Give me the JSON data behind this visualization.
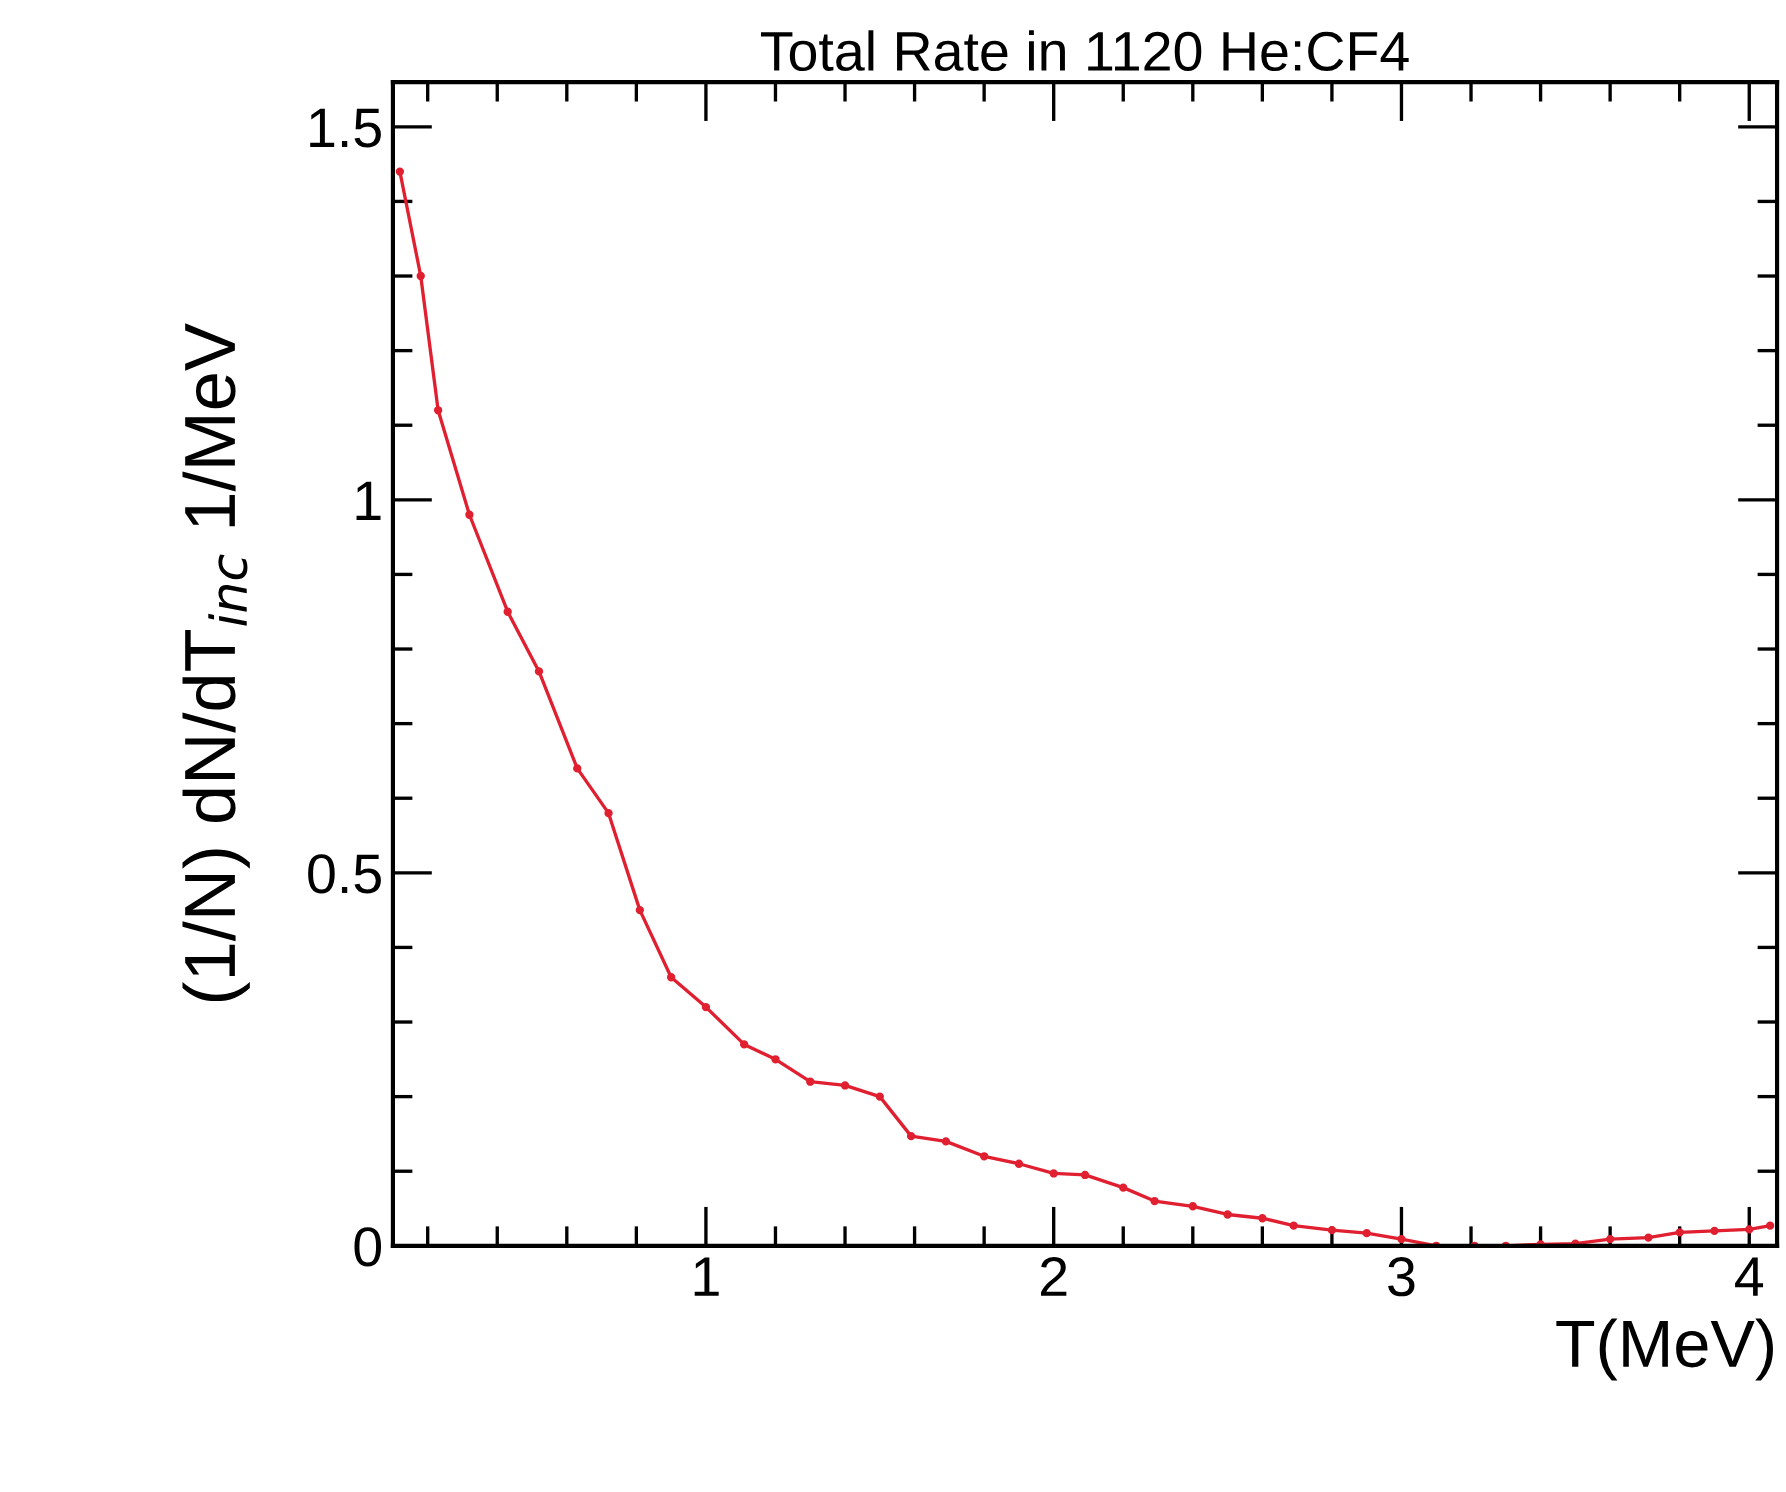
{
  "chart_data": {
    "type": "line",
    "title": "Total Rate in 1120 He:CF4",
    "xlabel": "T(MeV)",
    "ylabel": "(1/N) dN/dT$_{inc}$ 1/MeV",
    "x": [
      0.12,
      0.18,
      0.23,
      0.32,
      0.43,
      0.52,
      0.63,
      0.72,
      0.81,
      0.9,
      1.0,
      1.11,
      1.2,
      1.3,
      1.4,
      1.5,
      1.59,
      1.69,
      1.8,
      1.9,
      2.0,
      2.09,
      2.2,
      2.29,
      2.4,
      2.5,
      2.6,
      2.69,
      2.8,
      2.9,
      3.0,
      3.1,
      3.21,
      3.3,
      3.4,
      3.5,
      3.6,
      3.71,
      3.8,
      3.9,
      4.0,
      4.06
    ],
    "series": [
      {
        "color": "#e02030",
        "values": [
          1.44,
          1.3,
          1.12,
          0.98,
          0.85,
          0.77,
          0.64,
          0.58,
          0.45,
          0.36,
          0.32,
          0.27,
          0.25,
          0.22,
          0.215,
          0.2,
          0.147,
          0.14,
          0.12,
          0.11,
          0.097,
          0.095,
          0.078,
          0.06,
          0.053,
          0.042,
          0.037,
          0.027,
          0.021,
          0.017,
          0.009,
          0.0,
          0.0,
          0.0,
          0.002,
          0.003,
          0.009,
          0.011,
          0.018,
          0.02,
          0.022,
          0.027
        ]
      }
    ],
    "xlim": [
      0.1,
      4.08
    ],
    "ylim": [
      0,
      1.56
    ],
    "xticks": [
      1,
      2,
      3,
      4
    ],
    "yticks": [
      0,
      0.5,
      1,
      1.5
    ],
    "grid": false,
    "legend": false,
    "marker": "circle",
    "line_style": "solid"
  }
}
